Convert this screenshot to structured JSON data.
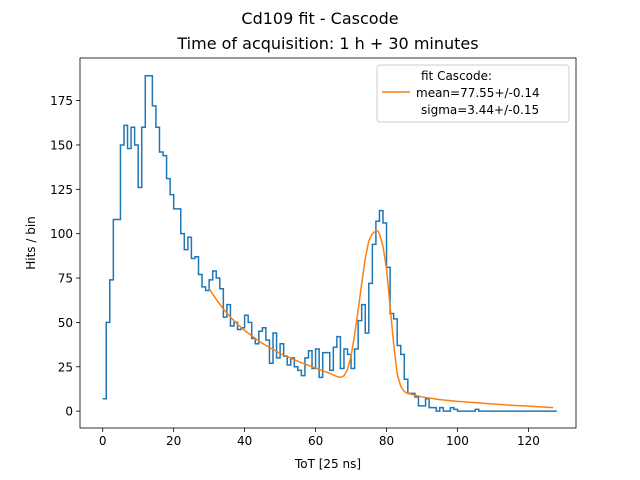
{
  "chart_data": {
    "type": "line",
    "title": "Cd109 fit - Cascode",
    "subtitle": "Time of acquisition: 1 h + 30 minutes",
    "xlabel": "ToT [25 ns]",
    "ylabel": "Hits / bin",
    "xlim": [
      -6.4,
      133.4
    ],
    "ylim": [
      -9.5,
      199
    ],
    "xticks": [
      0,
      20,
      40,
      60,
      80,
      100,
      120
    ],
    "yticks": [
      0,
      25,
      50,
      75,
      100,
      125,
      150,
      175
    ],
    "grid": false,
    "legend": {
      "placement": "top-right",
      "header": "fit Cascode:",
      "line1": "mean=77.55+/-0.14",
      "line2": "sigma=3.44+/-0.15"
    },
    "series": [
      {
        "kind": "histogram-step",
        "color": "#1f77b4",
        "x_start": 0,
        "bin_width": 1,
        "values": [
          7,
          50,
          74,
          108,
          108,
          150,
          161,
          148,
          160,
          150,
          126,
          160,
          189,
          189,
          172,
          160,
          146,
          144,
          131,
          122,
          114,
          114,
          100,
          91,
          98,
          86,
          87,
          77,
          70,
          68,
          74,
          79,
          75,
          69,
          53,
          60,
          48,
          50,
          46,
          47,
          54,
          50,
          41,
          38,
          45,
          47,
          40,
          27,
          44,
          30,
          38,
          31,
          26,
          30,
          25,
          23,
          20,
          30,
          34,
          24,
          35,
          19,
          33,
          33,
          23,
          36,
          42,
          24,
          35,
          32,
          24,
          35,
          51,
          60,
          44,
          72,
          94,
          107,
          113,
          106,
          81,
          55,
          52,
          37,
          32,
          18,
          10,
          10,
          8,
          3,
          3,
          7,
          2,
          2,
          0,
          2,
          0,
          0,
          2,
          1,
          0,
          0,
          0,
          0,
          0,
          1,
          0,
          0,
          0,
          0,
          0,
          0,
          0,
          0,
          0,
          0,
          0,
          0,
          0,
          0,
          0,
          0,
          0,
          0,
          0,
          0,
          0,
          0
        ]
      },
      {
        "name": "fit Cascode:",
        "kind": "fit-curve",
        "color": "#ff7f0e",
        "x": [
          30,
          32,
          34,
          36,
          38,
          40,
          42,
          44,
          46,
          48,
          50,
          52,
          54,
          56,
          58,
          60,
          62,
          64,
          66,
          67,
          68,
          69,
          70,
          71,
          72,
          73,
          74,
          75,
          76,
          77,
          77.55,
          78,
          79,
          80,
          81,
          82,
          83,
          84,
          85,
          86,
          87,
          88,
          90,
          95,
          100,
          105,
          110,
          115,
          120,
          127
        ],
        "y": [
          69,
          63,
          57.5,
          53,
          49,
          45.5,
          42.5,
          39.5,
          37,
          34.8,
          32.5,
          30.8,
          29,
          27.3,
          25.8,
          24.3,
          22.8,
          21.3,
          19.5,
          19,
          19.9,
          23.5,
          31,
          43,
          57,
          72,
          86,
          96,
          100,
          101.5,
          101.5,
          100,
          93,
          80,
          59,
          38,
          21,
          14,
          11,
          10,
          9.5,
          9,
          8,
          6.5,
          5.5,
          4.8,
          4,
          3.3,
          2.8,
          2
        ]
      }
    ]
  }
}
